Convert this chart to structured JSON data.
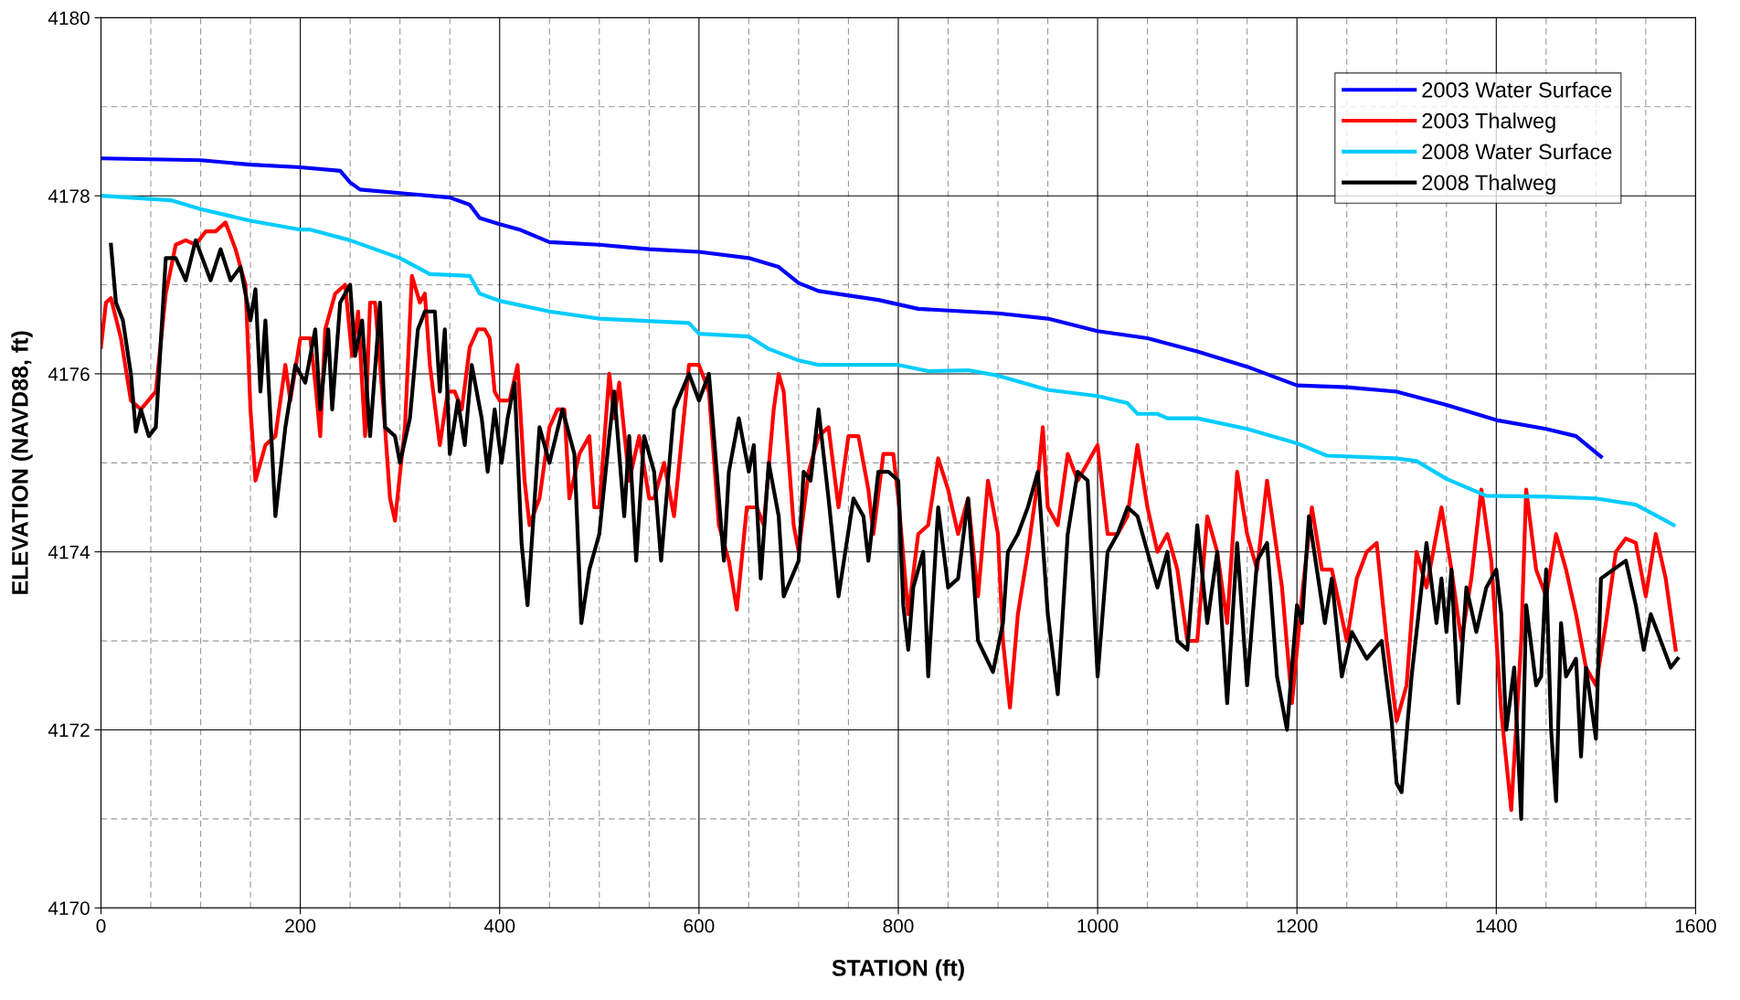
{
  "chart_data": {
    "type": "line",
    "xlabel": "STATION (ft)",
    "ylabel": "ELEVATION (NAVD88, ft)",
    "xlim": [
      0,
      1600
    ],
    "ylim": [
      4170,
      4180
    ],
    "xticks": [
      0,
      200,
      400,
      600,
      800,
      1000,
      1200,
      1400,
      1600
    ],
    "yticks": [
      4170,
      4172,
      4174,
      4176,
      4178,
      4180
    ],
    "grid": true,
    "legend": "top right",
    "line_style": "solid",
    "marker": "none",
    "series": [
      {
        "name": "2003 Water Surface",
        "color": "#0000ff",
        "x": [
          0,
          100,
          150,
          200,
          240,
          250,
          260,
          300,
          350,
          370,
          380,
          400,
          420,
          450,
          500,
          550,
          600,
          650,
          680,
          700,
          720,
          780,
          820,
          900,
          950,
          1000,
          1050,
          1100,
          1150,
          1200,
          1250,
          1300,
          1350,
          1400,
          1450,
          1480,
          1505
        ],
        "values": [
          4178.42,
          4178.4,
          4178.35,
          4178.32,
          4178.28,
          4178.15,
          4178.07,
          4178.03,
          4177.98,
          4177.9,
          4177.75,
          4177.68,
          4177.62,
          4177.48,
          4177.45,
          4177.4,
          4177.37,
          4177.3,
          4177.2,
          4177.02,
          4176.93,
          4176.83,
          4176.73,
          4176.68,
          4176.62,
          4176.48,
          4176.4,
          4176.25,
          4176.08,
          4175.87,
          4175.85,
          4175.8,
          4175.65,
          4175.48,
          4175.38,
          4175.3,
          4175.07
        ]
      },
      {
        "name": "2003 Thalweg",
        "color": "#ff0000",
        "x": [
          0,
          5,
          10,
          20,
          30,
          40,
          55,
          65,
          75,
          85,
          95,
          105,
          115,
          125,
          135,
          145,
          150,
          155,
          165,
          175,
          185,
          190,
          200,
          210,
          215,
          220,
          225,
          235,
          245,
          252,
          258,
          265,
          270,
          275,
          285,
          290,
          295,
          305,
          312,
          320,
          325,
          330,
          340,
          348,
          355,
          362,
          370,
          378,
          385,
          390,
          395,
          400,
          410,
          418,
          425,
          430,
          440,
          450,
          458,
          465,
          470,
          480,
          490,
          495,
          500,
          510,
          515,
          520,
          530,
          540,
          550,
          555,
          565,
          575,
          590,
          600,
          610,
          620,
          630,
          638,
          648,
          658,
          665,
          675,
          680,
          685,
          695,
          700,
          710,
          720,
          730,
          740,
          750,
          760,
          770,
          775,
          785,
          795,
          800,
          810,
          820,
          830,
          840,
          850,
          860,
          870,
          880,
          890,
          900,
          905,
          912,
          920,
          930,
          940,
          945,
          950,
          960,
          970,
          980,
          990,
          1000,
          1010,
          1020,
          1030,
          1040,
          1050,
          1060,
          1070,
          1080,
          1090,
          1100,
          1110,
          1120,
          1130,
          1140,
          1150,
          1160,
          1170,
          1180,
          1185,
          1195,
          1205,
          1215,
          1225,
          1235,
          1250,
          1260,
          1270,
          1280,
          1290,
          1300,
          1310,
          1320,
          1330,
          1345,
          1355,
          1365,
          1375,
          1385,
          1395,
          1405,
          1415,
          1425,
          1430,
          1440,
          1450,
          1460,
          1470,
          1480,
          1490,
          1500,
          1510,
          1520,
          1530,
          1540,
          1550,
          1560,
          1570,
          1580
        ],
        "values": [
          4176.3,
          4176.8,
          4176.85,
          4176.4,
          4175.7,
          4175.6,
          4175.8,
          4176.9,
          4177.45,
          4177.5,
          4177.45,
          4177.6,
          4177.6,
          4177.7,
          4177.4,
          4177.0,
          4175.6,
          4174.8,
          4175.2,
          4175.3,
          4176.1,
          4175.7,
          4176.4,
          4176.4,
          4175.9,
          4175.3,
          4176.5,
          4176.9,
          4177.0,
          4176.2,
          4176.7,
          4175.3,
          4176.8,
          4176.8,
          4175.4,
          4174.6,
          4174.35,
          4175.4,
          4177.1,
          4176.8,
          4176.9,
          4176.1,
          4175.2,
          4175.8,
          4175.8,
          4175.6,
          4176.3,
          4176.5,
          4176.5,
          4176.4,
          4175.8,
          4175.7,
          4175.7,
          4176.1,
          4174.8,
          4174.3,
          4174.6,
          4175.4,
          4175.6,
          4175.6,
          4174.6,
          4175.1,
          4175.3,
          4174.5,
          4174.5,
          4176.0,
          4175.5,
          4175.9,
          4174.8,
          4175.3,
          4174.6,
          4174.6,
          4175.0,
          4174.4,
          4176.1,
          4176.1,
          4175.8,
          4174.3,
          4173.9,
          4173.35,
          4174.5,
          4174.5,
          4174.3,
          4175.6,
          4176.0,
          4175.8,
          4174.3,
          4174.0,
          4174.9,
          4175.3,
          4175.4,
          4174.5,
          4175.3,
          4175.3,
          4174.7,
          4174.2,
          4175.1,
          4175.1,
          4174.6,
          4173.3,
          4174.2,
          4174.3,
          4175.05,
          4174.7,
          4174.2,
          4174.6,
          4173.5,
          4174.8,
          4174.2,
          4173.0,
          4172.25,
          4173.3,
          4174.0,
          4174.8,
          4175.4,
          4174.5,
          4174.3,
          4175.1,
          4174.8,
          4175.0,
          4175.2,
          4174.2,
          4174.2,
          4174.4,
          4175.2,
          4174.5,
          4174.0,
          4174.2,
          4173.8,
          4173.0,
          4173.0,
          4174.4,
          4174.0,
          4173.2,
          4174.9,
          4174.2,
          4173.8,
          4174.8,
          4174.0,
          4173.6,
          4172.3,
          4173.5,
          4174.5,
          4173.8,
          4173.8,
          4173.0,
          4173.7,
          4174.0,
          4174.1,
          4173.0,
          4172.1,
          4172.5,
          4174.0,
          4173.6,
          4174.5,
          4173.8,
          4173.0,
          4173.7,
          4174.7,
          4173.9,
          4172.2,
          4171.1,
          4173.0,
          4174.7,
          4173.8,
          4173.5,
          4174.2,
          4173.8,
          4173.3,
          4172.7,
          4172.5,
          4173.2,
          4174.0,
          4174.15,
          4174.1,
          4173.5,
          4174.2,
          4173.7,
          4172.9
        ]
      },
      {
        "name": "2008 Water Surface",
        "color": "#00ccff",
        "x": [
          0,
          70,
          100,
          150,
          200,
          210,
          250,
          300,
          330,
          370,
          380,
          400,
          450,
          500,
          590,
          600,
          650,
          670,
          700,
          720,
          800,
          830,
          870,
          900,
          950,
          1000,
          1030,
          1040,
          1060,
          1070,
          1100,
          1150,
          1200,
          1230,
          1300,
          1320,
          1350,
          1390,
          1450,
          1500,
          1540,
          1570,
          1578
        ],
        "values": [
          4178.0,
          4177.95,
          4177.85,
          4177.72,
          4177.62,
          4177.62,
          4177.5,
          4177.3,
          4177.12,
          4177.1,
          4176.9,
          4176.82,
          4176.7,
          4176.62,
          4176.57,
          4176.45,
          4176.42,
          4176.28,
          4176.15,
          4176.1,
          4176.1,
          4176.03,
          4176.04,
          4175.98,
          4175.82,
          4175.75,
          4175.67,
          4175.55,
          4175.55,
          4175.5,
          4175.5,
          4175.38,
          4175.22,
          4175.08,
          4175.05,
          4175.02,
          4174.82,
          4174.63,
          4174.62,
          4174.6,
          4174.53,
          4174.35,
          4174.3
        ]
      },
      {
        "name": "2008 Thalweg",
        "color": "#000000",
        "x": [
          10,
          15,
          22,
          30,
          35,
          40,
          48,
          55,
          65,
          75,
          85,
          95,
          110,
          120,
          130,
          140,
          150,
          155,
          160,
          165,
          175,
          185,
          195,
          205,
          215,
          220,
          228,
          232,
          240,
          245,
          250,
          255,
          262,
          270,
          280,
          285,
          295,
          300,
          310,
          318,
          325,
          335,
          340,
          345,
          350,
          358,
          365,
          372,
          382,
          388,
          395,
          402,
          408,
          415,
          422,
          428,
          440,
          450,
          463,
          475,
          482,
          490,
          500,
          510,
          515,
          525,
          530,
          537,
          545,
          555,
          562,
          575,
          590,
          600,
          610,
          625,
          630,
          640,
          650,
          655,
          662,
          670,
          680,
          685,
          700,
          705,
          712,
          720,
          730,
          740,
          755,
          765,
          770,
          780,
          790,
          800,
          805,
          810,
          815,
          825,
          830,
          840,
          850,
          860,
          870,
          880,
          895,
          905,
          910,
          920,
          930,
          940,
          950,
          960,
          970,
          980,
          990,
          1000,
          1010,
          1020,
          1030,
          1040,
          1050,
          1060,
          1070,
          1080,
          1090,
          1100,
          1110,
          1120,
          1130,
          1140,
          1150,
          1160,
          1170,
          1180,
          1190,
          1200,
          1205,
          1212,
          1220,
          1228,
          1235,
          1245,
          1255,
          1270,
          1285,
          1295,
          1300,
          1305,
          1315,
          1330,
          1340,
          1345,
          1350,
          1355,
          1362,
          1370,
          1380,
          1390,
          1400,
          1405,
          1410,
          1418,
          1425,
          1430,
          1440,
          1445,
          1450,
          1455,
          1460,
          1465,
          1470,
          1480,
          1485,
          1490,
          1500,
          1505,
          1530,
          1540,
          1548,
          1555,
          1565,
          1575,
          1582
        ],
        "values": [
          4177.45,
          4176.8,
          4176.6,
          4176.0,
          4175.35,
          4175.6,
          4175.3,
          4175.4,
          4177.3,
          4177.3,
          4177.05,
          4177.5,
          4177.05,
          4177.4,
          4177.05,
          4177.2,
          4176.6,
          4176.95,
          4175.8,
          4176.6,
          4174.4,
          4175.4,
          4176.1,
          4175.9,
          4176.5,
          4175.6,
          4176.5,
          4175.6,
          4176.8,
          4176.9,
          4177.0,
          4176.2,
          4176.6,
          4175.3,
          4176.8,
          4175.4,
          4175.3,
          4175.0,
          4175.5,
          4176.5,
          4176.7,
          4176.7,
          4175.8,
          4176.5,
          4175.1,
          4175.7,
          4175.2,
          4176.1,
          4175.5,
          4174.9,
          4175.6,
          4175.0,
          4175.5,
          4175.9,
          4174.1,
          4173.4,
          4175.4,
          4175.0,
          4175.6,
          4175.1,
          4173.2,
          4173.8,
          4174.2,
          4175.3,
          4175.8,
          4174.4,
          4175.3,
          4173.9,
          4175.3,
          4174.9,
          4173.9,
          4175.6,
          4176.0,
          4175.7,
          4176.0,
          4173.9,
          4174.9,
          4175.5,
          4174.9,
          4175.2,
          4173.7,
          4175.0,
          4174.4,
          4173.5,
          4173.9,
          4174.9,
          4174.8,
          4175.6,
          4174.6,
          4173.5,
          4174.6,
          4174.4,
          4173.9,
          4174.9,
          4174.9,
          4174.8,
          4173.4,
          4172.9,
          4173.6,
          4174.0,
          4172.6,
          4174.5,
          4173.6,
          4173.7,
          4174.6,
          4173.0,
          4172.65,
          4173.2,
          4174.0,
          4174.2,
          4174.5,
          4174.9,
          4173.3,
          4172.4,
          4174.2,
          4174.9,
          4174.8,
          4172.6,
          4174.0,
          4174.2,
          4174.5,
          4174.4,
          4174.0,
          4173.6,
          4174.0,
          4173.0,
          4172.9,
          4174.3,
          4173.2,
          4174.0,
          4172.3,
          4174.1,
          4172.5,
          4173.9,
          4174.1,
          4172.6,
          4172.0,
          4173.4,
          4173.2,
          4174.4,
          4173.8,
          4173.2,
          4173.7,
          4172.6,
          4173.1,
          4172.8,
          4173.0,
          4172.1,
          4171.4,
          4171.3,
          4172.6,
          4174.1,
          4173.2,
          4173.7,
          4173.1,
          4173.8,
          4172.3,
          4173.6,
          4173.1,
          4173.6,
          4173.8,
          4173.3,
          4172.0,
          4172.7,
          4171.0,
          4173.4,
          4172.5,
          4172.6,
          4173.8,
          4172.0,
          4171.2,
          4173.2,
          4172.6,
          4172.8,
          4171.7,
          4172.7,
          4171.9,
          4173.7,
          4173.9,
          4173.4,
          4172.9,
          4173.3,
          4173.0,
          4172.7,
          4172.8
        ]
      }
    ]
  }
}
